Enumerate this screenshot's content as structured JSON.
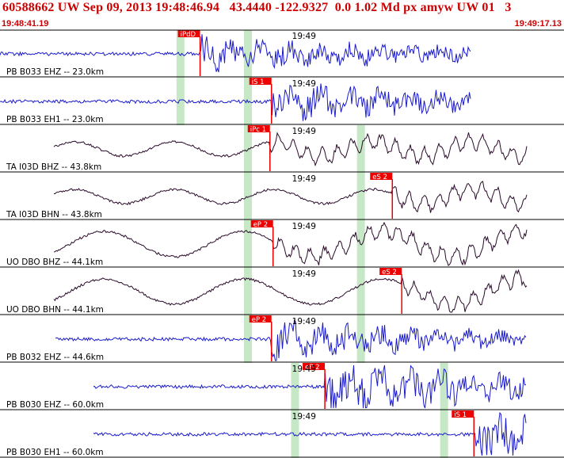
{
  "header": {
    "title": "60588662 UW Sep 09, 2013 19:48:46.94   43.4440 -122.9327  0.0 1.02 Md px amyw UW 01   3",
    "start_time": "19:48:41.19",
    "end_time": "19:49:17.13"
  },
  "colors": {
    "header_text": "#cc0000",
    "pick": "#ee0000",
    "theoretical_window": "#c6e8c6",
    "trace_blue": "#1a1acc",
    "trace_dark": "#2a0a2a",
    "separator": "#000000"
  },
  "chart_data": {
    "type": "line",
    "title": "60588662 UW Sep 09, 2013 19:48:46.94   43.4440 -122.9327  0.0 1.02 Md px amyw UW 01   3",
    "x_range": [
      "19:48:41.19",
      "19:49:17.13"
    ],
    "minute_tick_label": "19:49",
    "panels": [
      {
        "label": "PB B033 EHZ -- 23.0km",
        "pick": {
          "label": "iPdD",
          "time": 12.75
        },
        "windows": [
          11.5,
          15.8
        ],
        "color": "blue"
      },
      {
        "label": "PB B033 EH1 -- 23.0km",
        "pick": {
          "label": "iS 1",
          "time": 17.3
        },
        "windows": [
          11.5,
          15.8
        ],
        "color": "blue"
      },
      {
        "label": "TA I03D BHZ -- 43.8km",
        "pick": {
          "label": "iPc 1",
          "time": 17.2
        },
        "windows": [
          15.8,
          23.0
        ],
        "color": "dark"
      },
      {
        "label": "TA I03D BHN -- 43.8km",
        "pick": {
          "label": "eS 2",
          "time": 25.0
        },
        "windows": [
          15.8,
          23.0
        ],
        "color": "dark"
      },
      {
        "label": "UO DBO BHZ -- 44.1km",
        "pick": {
          "label": "eP 2",
          "time": 17.4
        },
        "windows": [
          15.8,
          23.0
        ],
        "color": "dark"
      },
      {
        "label": "UO DBO BHN -- 44.1km",
        "pick": {
          "label": "eS 2",
          "time": 25.6
        },
        "windows": [
          15.8,
          23.0
        ],
        "color": "dark"
      },
      {
        "label": "PB B032 EHZ -- 44.6km",
        "pick": {
          "label": "eP 2",
          "time": 17.3
        },
        "windows": [
          15.8,
          23.0
        ],
        "color": "blue"
      },
      {
        "label": "PB B030 EHZ -- 60.0km",
        "pick": {
          "label": "eP 2",
          "time": 20.7
        },
        "windows": [
          18.8,
          28.3
        ],
        "color": "blue"
      },
      {
        "label": "PB B030 EH1 -- 60.0km",
        "pick": {
          "label": "iS 1",
          "time": 30.2
        },
        "windows": [
          18.8,
          28.3
        ],
        "color": "blue"
      }
    ]
  }
}
